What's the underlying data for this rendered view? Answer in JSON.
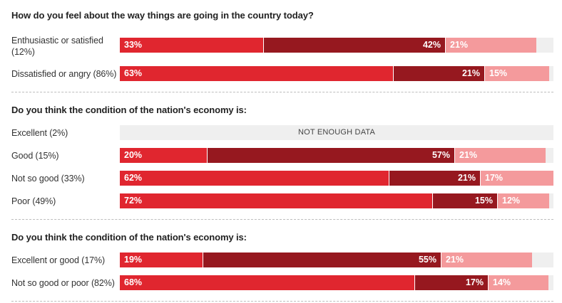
{
  "colors": {
    "segment_1": "#e0262f",
    "segment_2": "#96181f",
    "segment_3": "#f49a9c",
    "track": "#efefef"
  },
  "chart_data": {
    "type": "bar",
    "orientation": "horizontal-stacked",
    "groups": [
      {
        "title": "How do you feel about the way things are going in the country today?",
        "rows": [
          {
            "label": "Enthusiastic or satisfied (12%)",
            "values": [
              33,
              42,
              21
            ],
            "value_labels": [
              "33%",
              "42%",
              "21%"
            ]
          },
          {
            "label": "Dissatisfied or angry (86%)",
            "values": [
              63,
              21,
              15
            ],
            "value_labels": [
              "63%",
              "21%",
              "15%"
            ]
          }
        ]
      },
      {
        "title": "Do you think the condition of the nation's economy is:",
        "rows": [
          {
            "label": "Excellent (2%)",
            "values": null,
            "note": "NOT ENOUGH DATA"
          },
          {
            "label": "Good (15%)",
            "values": [
              20,
              57,
              21
            ],
            "value_labels": [
              "20%",
              "57%",
              "21%"
            ]
          },
          {
            "label": "Not so good (33%)",
            "values": [
              62,
              21,
              17
            ],
            "value_labels": [
              "62%",
              "21%",
              "17%"
            ]
          },
          {
            "label": "Poor (49%)",
            "values": [
              72,
              15,
              12
            ],
            "value_labels": [
              "72%",
              "15%",
              "12%"
            ]
          }
        ]
      },
      {
        "title": "Do you think the condition of the nation's economy is:",
        "rows": [
          {
            "label": "Excellent or good (17%)",
            "values": [
              19,
              55,
              21
            ],
            "value_labels": [
              "19%",
              "55%",
              "21%"
            ]
          },
          {
            "label": "Not so good or poor (82%)",
            "values": [
              68,
              17,
              14
            ],
            "value_labels": [
              "68%",
              "17%",
              "14%"
            ]
          }
        ]
      }
    ],
    "xlim": [
      0,
      100
    ]
  }
}
